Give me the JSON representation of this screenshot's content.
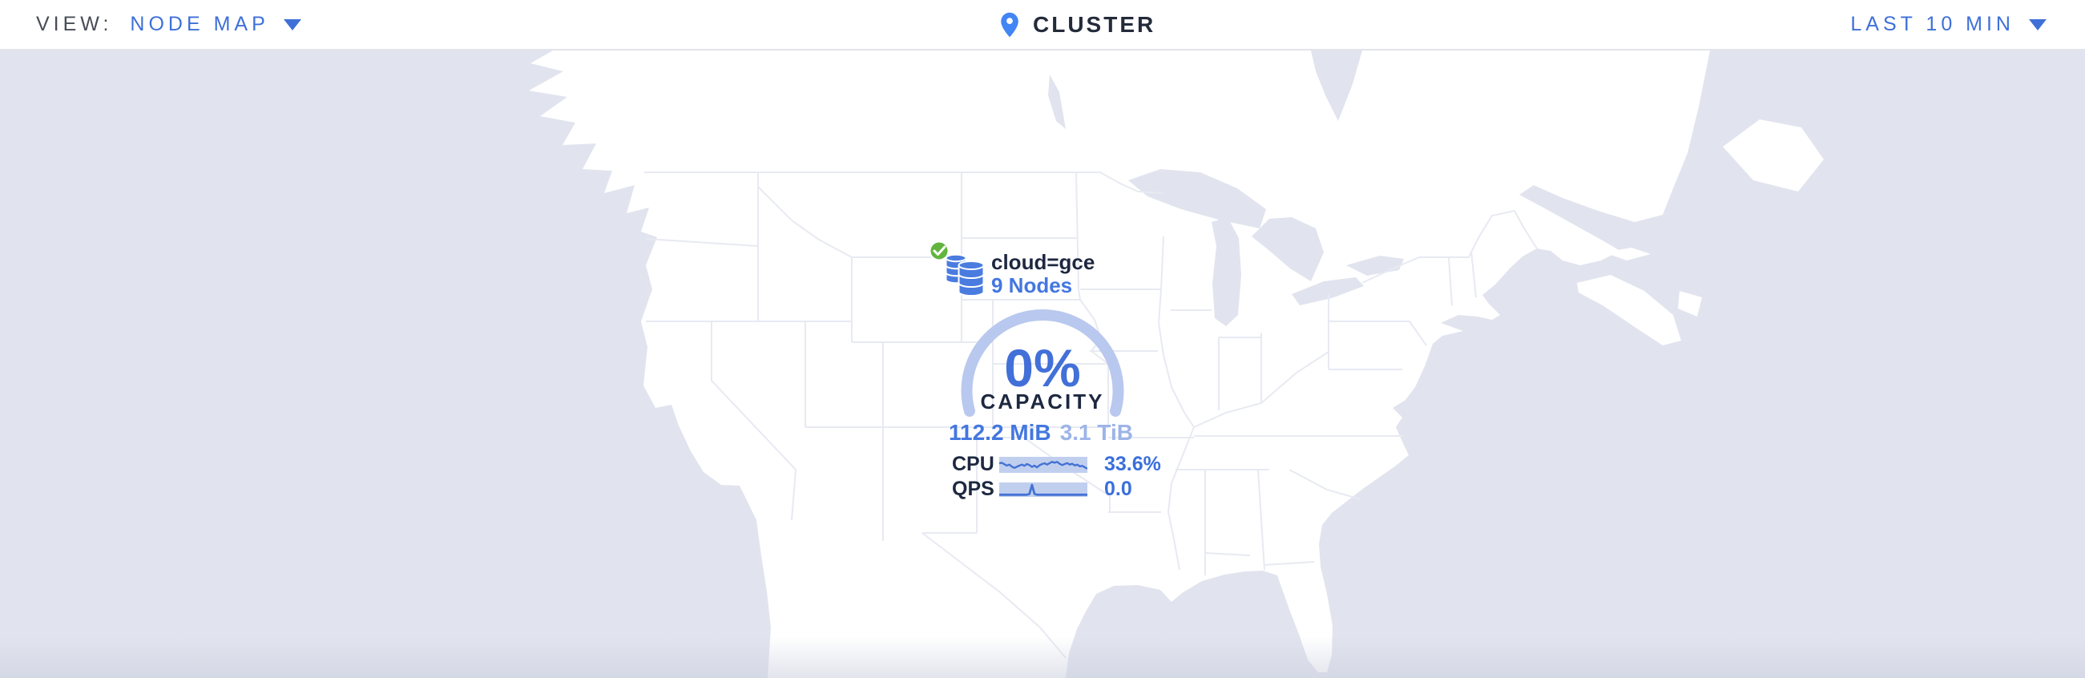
{
  "header": {
    "view_label": "VIEW:",
    "view_value": "NODE MAP",
    "cluster_title": "CLUSTER",
    "time_range": "LAST 10 MIN"
  },
  "marker": {
    "locality": "cloud=gce",
    "node_count": "9 Nodes",
    "status": "healthy"
  },
  "gauge": {
    "percent": "0%",
    "caption": "CAPACITY",
    "used": "112.2 MiB",
    "capacity": "3.1 TiB"
  },
  "metrics": {
    "cpu": {
      "label": "CPU",
      "value": "33.6%"
    },
    "qps": {
      "label": "QPS",
      "value": "0.0"
    }
  },
  "chart_data": [
    {
      "type": "line",
      "name": "cpu-sparkline",
      "title": "CPU usage sparkline (last 10 min)",
      "value_label": "33.6%",
      "ylim": [
        0,
        1
      ],
      "y_normalized": [
        0.62,
        0.66,
        0.55,
        0.44,
        0.52,
        0.36,
        0.26,
        0.35,
        0.44,
        0.52,
        0.42,
        0.56,
        0.48,
        0.34,
        0.44,
        0.3,
        0.46,
        0.56,
        0.62,
        0.52,
        0.63,
        0.74,
        0.66,
        0.73,
        0.58,
        0.48,
        0.56,
        0.63,
        0.52,
        0.58,
        0.45,
        0.52,
        0.38,
        0.42,
        0.3,
        0.2
      ]
    },
    {
      "type": "line",
      "name": "qps-sparkline",
      "title": "Queries per second sparkline (last 10 min)",
      "value_label": "0.0",
      "ylim": [
        0,
        1
      ],
      "y_normalized": [
        0.05,
        0.05,
        0.05,
        0.05,
        0.05,
        0.05,
        0.05,
        0.05,
        0.05,
        0.05,
        0.05,
        0.05,
        0.12,
        0.92,
        0.12,
        0.05,
        0.05,
        0.05,
        0.05,
        0.05,
        0.05,
        0.05,
        0.05,
        0.05,
        0.05,
        0.05,
        0.05,
        0.05,
        0.05,
        0.05,
        0.05,
        0.05,
        0.05,
        0.05,
        0.05,
        0.05
      ]
    }
  ],
  "colors": {
    "accent_blue": "#3e70d8",
    "value_blue": "#3a6fdc",
    "nodes_blue": "#4377e0",
    "dark_navy": "#1d2840",
    "ocean": "#e1e4ee",
    "land": "#ffffff",
    "state_border": "#e8eaf2",
    "gauge_arc": "#b9c8ee",
    "capacity_total": "#9db4e8",
    "spark_bg": "#c1cfef",
    "spark_line": "#4472d4",
    "healthy_green": "#61b53e",
    "db_icon_blue": "#4a7ce0"
  }
}
